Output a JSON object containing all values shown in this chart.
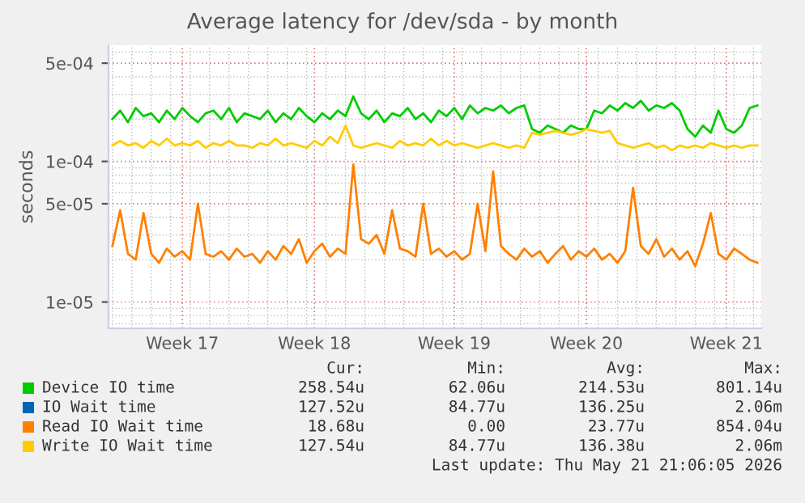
{
  "chart_data": {
    "type": "line",
    "title": "Average latency for /dev/sda - by month",
    "ylabel": "seconds",
    "log": "y",
    "grid": true,
    "legend": "bottom",
    "ylim": [
      6.5e-06,
      0.00067
    ],
    "yticks": [
      {
        "value": 1e-05,
        "label": "1e-05"
      },
      {
        "value": 5e-05,
        "label": "5e-05"
      },
      {
        "value": 0.0001,
        "label": "1e-04"
      },
      {
        "value": 0.0005,
        "label": "5e-04"
      }
    ],
    "categories": [
      null,
      null,
      null,
      null,
      null,
      null,
      null,
      null,
      null,
      "Week 17",
      null,
      null,
      null,
      null,
      null,
      null,
      null,
      null,
      null,
      null,
      null,
      null,
      null,
      null,
      null,
      null,
      "Week 18",
      null,
      null,
      null,
      null,
      null,
      null,
      null,
      null,
      null,
      null,
      null,
      null,
      null,
      null,
      null,
      null,
      null,
      "Week 19",
      null,
      null,
      null,
      null,
      null,
      null,
      null,
      null,
      null,
      null,
      null,
      null,
      null,
      null,
      null,
      null,
      "Week 20",
      null,
      null,
      null,
      null,
      null,
      null,
      null,
      null,
      null,
      null,
      null,
      null,
      null,
      null,
      null,
      null,
      null,
      "Week 21",
      null,
      null,
      null,
      null
    ],
    "series": [
      {
        "name": "Device IO time",
        "color": "#00cc00",
        "values": [
          0.0002,
          0.00023,
          0.00019,
          0.00024,
          0.00021,
          0.00022,
          0.00019,
          0.00023,
          0.0002,
          0.00024,
          0.00021,
          0.00019,
          0.00022,
          0.00023,
          0.0002,
          0.00024,
          0.00019,
          0.00022,
          0.00021,
          0.0002,
          0.00023,
          0.00019,
          0.00022,
          0.0002,
          0.00024,
          0.00021,
          0.00019,
          0.00022,
          0.0002,
          0.00023,
          0.00021,
          0.00029,
          0.00022,
          0.0002,
          0.00023,
          0.00019,
          0.00022,
          0.00021,
          0.00024,
          0.0002,
          0.00022,
          0.00019,
          0.00023,
          0.00021,
          0.00024,
          0.0002,
          0.00025,
          0.00022,
          0.00024,
          0.00023,
          0.00025,
          0.00022,
          0.00024,
          0.00025,
          0.00017,
          0.00016,
          0.00018,
          0.00017,
          0.00016,
          0.00018,
          0.00017,
          0.00017,
          0.00023,
          0.00022,
          0.00025,
          0.00023,
          0.00026,
          0.00024,
          0.00027,
          0.00023,
          0.00025,
          0.00024,
          0.00026,
          0.00023,
          0.00017,
          0.00015,
          0.00018,
          0.00016,
          0.00023,
          0.00017,
          0.00016,
          0.00018,
          0.00024,
          0.00025
        ]
      },
      {
        "name": "IO Wait time",
        "color": "#0066b3",
        "values": [
          null,
          null,
          null,
          null,
          null,
          null,
          null,
          null,
          null,
          null,
          null,
          null,
          null,
          null,
          null,
          null,
          null,
          null,
          null,
          null,
          null,
          null,
          null,
          null,
          null,
          null,
          null,
          null,
          null,
          null,
          null,
          null,
          null,
          null,
          null,
          null,
          null,
          null,
          null,
          null,
          null,
          null,
          null,
          null,
          null,
          null,
          null,
          null,
          null,
          null,
          null,
          null,
          null,
          null,
          null,
          null,
          null,
          null,
          null,
          null,
          null,
          null,
          null,
          null,
          null,
          null,
          null,
          null,
          null,
          null,
          null,
          null,
          null,
          null,
          null,
          null,
          null,
          null,
          null,
          null,
          null,
          null,
          null,
          null
        ]
      },
      {
        "name": "Read IO Wait time",
        "color": "#ff8000",
        "values": [
          2.5e-05,
          4.5e-05,
          2.2e-05,
          2e-05,
          4.3e-05,
          2.2e-05,
          1.9e-05,
          2.4e-05,
          2.1e-05,
          2.3e-05,
          2e-05,
          5e-05,
          2.2e-05,
          2.1e-05,
          2.3e-05,
          2e-05,
          2.4e-05,
          2.1e-05,
          2.2e-05,
          1.9e-05,
          2.3e-05,
          2e-05,
          2.5e-05,
          2.2e-05,
          2.8e-05,
          1.9e-05,
          2.3e-05,
          2.6e-05,
          2.1e-05,
          2.4e-05,
          2.2e-05,
          9.5e-05,
          2.8e-05,
          2.6e-05,
          3e-05,
          2.2e-05,
          4.5e-05,
          2.4e-05,
          2.3e-05,
          2.1e-05,
          5e-05,
          2.2e-05,
          2.4e-05,
          2.1e-05,
          2.3e-05,
          2e-05,
          2.2e-05,
          5e-05,
          2.3e-05,
          8.5e-05,
          2.5e-05,
          2.2e-05,
          2e-05,
          2.4e-05,
          2.1e-05,
          2.3e-05,
          1.9e-05,
          2.2e-05,
          2.5e-05,
          2e-05,
          2.3e-05,
          2.1e-05,
          2.4e-05,
          2e-05,
          2.2e-05,
          1.9e-05,
          2.3e-05,
          6.5e-05,
          2.5e-05,
          2.2e-05,
          2.8e-05,
          2.1e-05,
          2.4e-05,
          2e-05,
          2.3e-05,
          1.8e-05,
          2.6e-05,
          4.3e-05,
          2.2e-05,
          2e-05,
          2.4e-05,
          2.2e-05,
          2e-05,
          1.9e-05
        ]
      },
      {
        "name": "Write IO Wait time",
        "color": "#ffcc00",
        "values": [
          0.00013,
          0.00014,
          0.00013,
          0.000135,
          0.000125,
          0.00014,
          0.00013,
          0.000145,
          0.00013,
          0.000135,
          0.00013,
          0.00014,
          0.000125,
          0.000135,
          0.00013,
          0.00014,
          0.00013,
          0.00013,
          0.000125,
          0.000135,
          0.00013,
          0.000145,
          0.00013,
          0.000135,
          0.00013,
          0.000125,
          0.00014,
          0.00013,
          0.00015,
          0.000135,
          0.00018,
          0.00013,
          0.000125,
          0.00013,
          0.000135,
          0.00013,
          0.000125,
          0.00014,
          0.00013,
          0.000135,
          0.00013,
          0.000145,
          0.00013,
          0.00014,
          0.00013,
          0.000135,
          0.00013,
          0.000125,
          0.00013,
          0.000135,
          0.00013,
          0.000125,
          0.00013,
          0.000125,
          0.00016,
          0.000155,
          0.00016,
          0.000165,
          0.00016,
          0.000155,
          0.00016,
          0.00017,
          0.000165,
          0.00016,
          0.000165,
          0.000135,
          0.00013,
          0.000125,
          0.00013,
          0.000135,
          0.000125,
          0.00013,
          0.00012,
          0.00013,
          0.000125,
          0.00013,
          0.000125,
          0.000135,
          0.00013,
          0.000125,
          0.00013,
          0.000125,
          0.00013,
          0.00013
        ]
      }
    ],
    "annotations": [
      "Cur:",
      "Min:",
      "Avg:",
      "Max:",
      "258.54u",
      "62.06u",
      "214.53u",
      "801.14u",
      "127.52u",
      "84.77u",
      "136.25u",
      "2.06m",
      "18.68u",
      "0.00",
      "23.77u",
      "854.04u",
      "127.54u",
      "84.77u",
      "136.38u",
      "2.06m",
      "Last update: Thu May 21 21:06:05 2026"
    ]
  }
}
